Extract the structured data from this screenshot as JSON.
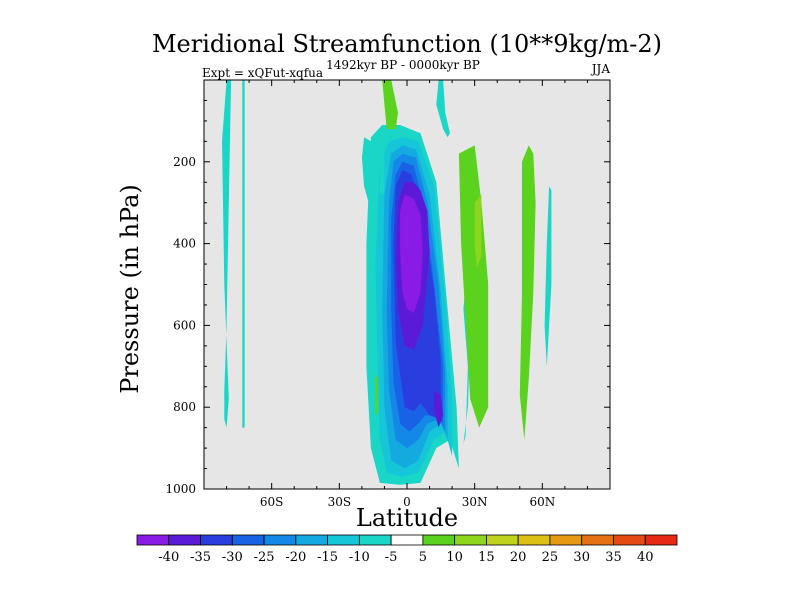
{
  "chart_data": {
    "type": "contour",
    "title": "Meridional Streamfunction (10**9kg/m-2)",
    "subtitle_left": "Expt = xQFut-xqfua",
    "subtitle_center": "1492kyr BP - 0000kyr BP",
    "subtitle_right": "JJA",
    "xlabel": "Latitude",
    "ylabel": "Pressure (in hPa)",
    "xlim": [
      -90,
      90
    ],
    "ylim": [
      1000,
      0
    ],
    "x_ticks": [
      {
        "value": -60,
        "label": "60S"
      },
      {
        "value": -30,
        "label": "30S"
      },
      {
        "value": 0,
        "label": "0"
      },
      {
        "value": 30,
        "label": "30N"
      },
      {
        "value": 60,
        "label": "60N"
      }
    ],
    "y_ticks": [
      {
        "value": 200,
        "label": "200"
      },
      {
        "value": 400,
        "label": "400"
      },
      {
        "value": 600,
        "label": "600"
      },
      {
        "value": 800,
        "label": "800"
      },
      {
        "value": 1000,
        "label": "1000"
      }
    ],
    "missing_color": "#e6e6e6",
    "colorbar": {
      "levels": [
        "-40",
        "-35",
        "-30",
        "-25",
        "-20",
        "-15",
        "-10",
        "-5",
        "5",
        "10",
        "15",
        "20",
        "25",
        "30",
        "35",
        "40"
      ],
      "colors": [
        "#8a1ae6",
        "#5a1ad8",
        "#2a3ee0",
        "#1862e6",
        "#1488e6",
        "#14aae0",
        "#14c6d8",
        "#1ad6c6",
        "#ffffff",
        "#5ad21e",
        "#8ed61e",
        "#bed21e",
        "#dcc014",
        "#e69a14",
        "#e67014",
        "#e64a14",
        "#e62814"
      ]
    },
    "regions": [
      {
        "value": -5,
        "color": "#1ad6c6",
        "lat": [
          -12,
          -3,
          6,
          13,
          19,
          23,
          22,
          18,
          13,
          6,
          -3,
          -11,
          -16,
          -18,
          -18,
          -16
        ],
        "p": [
          985,
          990,
          985,
          900,
          880,
          950,
          800,
          560,
          250,
          130,
          110,
          110,
          140,
          400,
          700,
          900
        ]
      },
      {
        "value": -10,
        "color": "#14c6d8",
        "lat": [
          -9,
          -2,
          5,
          12,
          17,
          20,
          20,
          17,
          12,
          5,
          -2,
          -8,
          -12,
          -14,
          -13,
          -12
        ],
        "p": [
          960,
          970,
          960,
          880,
          860,
          920,
          780,
          540,
          260,
          150,
          140,
          150,
          200,
          450,
          700,
          880
        ]
      },
      {
        "value": -15,
        "color": "#14aae0",
        "lat": [
          -7,
          -1,
          5,
          10,
          15,
          18,
          18,
          15,
          10,
          4,
          -2,
          -7,
          -10,
          -11,
          -10
        ],
        "p": [
          930,
          950,
          930,
          860,
          840,
          880,
          750,
          520,
          280,
          170,
          160,
          180,
          280,
          560,
          800
        ]
      },
      {
        "value": -20,
        "color": "#1488e6",
        "lat": [
          -5,
          0,
          5,
          9,
          14,
          17,
          17,
          14,
          9,
          4,
          -2,
          -6,
          -8,
          -9,
          -8
        ],
        "p": [
          880,
          900,
          880,
          840,
          830,
          860,
          720,
          500,
          300,
          190,
          180,
          200,
          300,
          560,
          760
        ]
      },
      {
        "value": -25,
        "color": "#1862e6",
        "lat": [
          -3,
          1,
          5,
          8,
          12,
          16,
          16,
          12,
          8,
          3,
          -2,
          -5,
          -7,
          -7,
          -6
        ],
        "p": [
          840,
          860,
          840,
          820,
          820,
          840,
          700,
          500,
          320,
          210,
          200,
          230,
          340,
          560,
          740
        ]
      },
      {
        "value": -30,
        "color": "#2a3ee0",
        "lat": [
          -1,
          3,
          6,
          10,
          15,
          15,
          12,
          7,
          2,
          -2,
          -5,
          -6,
          -5
        ],
        "p": [
          800,
          810,
          790,
          820,
          830,
          690,
          510,
          340,
          230,
          220,
          260,
          400,
          640
        ]
      },
      {
        "value": -35,
        "color": "#5a1ad8",
        "lat": [
          -1,
          3,
          7,
          10,
          9,
          6,
          3,
          -1,
          -4,
          -5,
          -4
        ],
        "p": [
          650,
          660,
          600,
          420,
          320,
          270,
          250,
          250,
          300,
          420,
          560
        ]
      },
      {
        "value": -40,
        "color": "#8a1ae6",
        "lat": [
          0,
          3,
          6,
          7,
          6,
          3,
          -1,
          -3,
          -3,
          -2
        ],
        "p": [
          560,
          570,
          520,
          420,
          330,
          290,
          280,
          320,
          420,
          520
        ]
      },
      {
        "value": -35,
        "color": "#5a1ad8",
        "lat": [
          12,
          15,
          16,
          14,
          12
        ],
        "p": [
          760,
          770,
          820,
          850,
          810
        ]
      },
      {
        "value": -5,
        "color": "#1ad6c6",
        "lat": [
          -80,
          -78,
          -79,
          -80,
          -81,
          -81,
          -80,
          -79,
          -81,
          -82
        ],
        "p": [
          0,
          0,
          300,
          600,
          760,
          830,
          850,
          780,
          500,
          150
        ]
      },
      {
        "value": -5,
        "color": "#1ad6c6",
        "lat": [
          -73,
          -72,
          -72,
          -72,
          -73,
          -73
        ],
        "p": [
          0,
          0,
          400,
          850,
          850,
          400
        ]
      },
      {
        "value": -5,
        "color": "#1ad6c6",
        "lat": [
          -19,
          -16,
          -15,
          -17,
          -19,
          -20
        ],
        "p": [
          140,
          150,
          230,
          300,
          260,
          190
        ]
      },
      {
        "value": -5,
        "color": "#1ad6c6",
        "lat": [
          -12,
          -10,
          -10,
          -12,
          -12
        ],
        "p": [
          170,
          170,
          280,
          280,
          220
        ]
      },
      {
        "value": -5,
        "color": "#1ad6c6",
        "lat": [
          14,
          16,
          17,
          19,
          18,
          16,
          13
        ],
        "p": [
          0,
          0,
          80,
          130,
          140,
          120,
          60
        ]
      },
      {
        "value": -5,
        "color": "#1ad6c6",
        "lat": [
          26,
          27,
          28,
          27,
          25,
          26,
          27,
          25
        ],
        "p": [
          500,
          500,
          630,
          800,
          890,
          870,
          700,
          560
        ]
      },
      {
        "value": -5,
        "color": "#1ad6c6",
        "lat": [
          63,
          64,
          64,
          62,
          61,
          62
        ],
        "p": [
          260,
          270,
          500,
          700,
          600,
          400
        ]
      },
      {
        "value": 5,
        "color": "#5ad21e",
        "lat": [
          -11,
          -7,
          -4,
          -5,
          -9
        ],
        "p": [
          0,
          0,
          80,
          120,
          120
        ]
      },
      {
        "value": 5,
        "color": "#5ad21e",
        "lat": [
          -14,
          -13,
          -13,
          -14
        ],
        "p": [
          720,
          730,
          820,
          810
        ]
      },
      {
        "value": 5,
        "color": "#5ad21e",
        "lat": [
          23,
          30,
          33,
          36,
          36,
          32,
          28,
          24
        ],
        "p": [
          180,
          160,
          300,
          500,
          800,
          850,
          780,
          400
        ]
      },
      {
        "value": 5,
        "color": "#5ad21e",
        "lat": [
          51,
          54,
          56,
          57,
          56,
          54,
          52,
          50,
          51
        ],
        "p": [
          200,
          160,
          180,
          300,
          520,
          730,
          880,
          770,
          520
        ]
      },
      {
        "value": 10,
        "color": "#8ed61e",
        "lat": [
          30,
          33,
          33,
          31,
          30
        ],
        "p": [
          300,
          280,
          430,
          460,
          400
        ]
      }
    ]
  }
}
